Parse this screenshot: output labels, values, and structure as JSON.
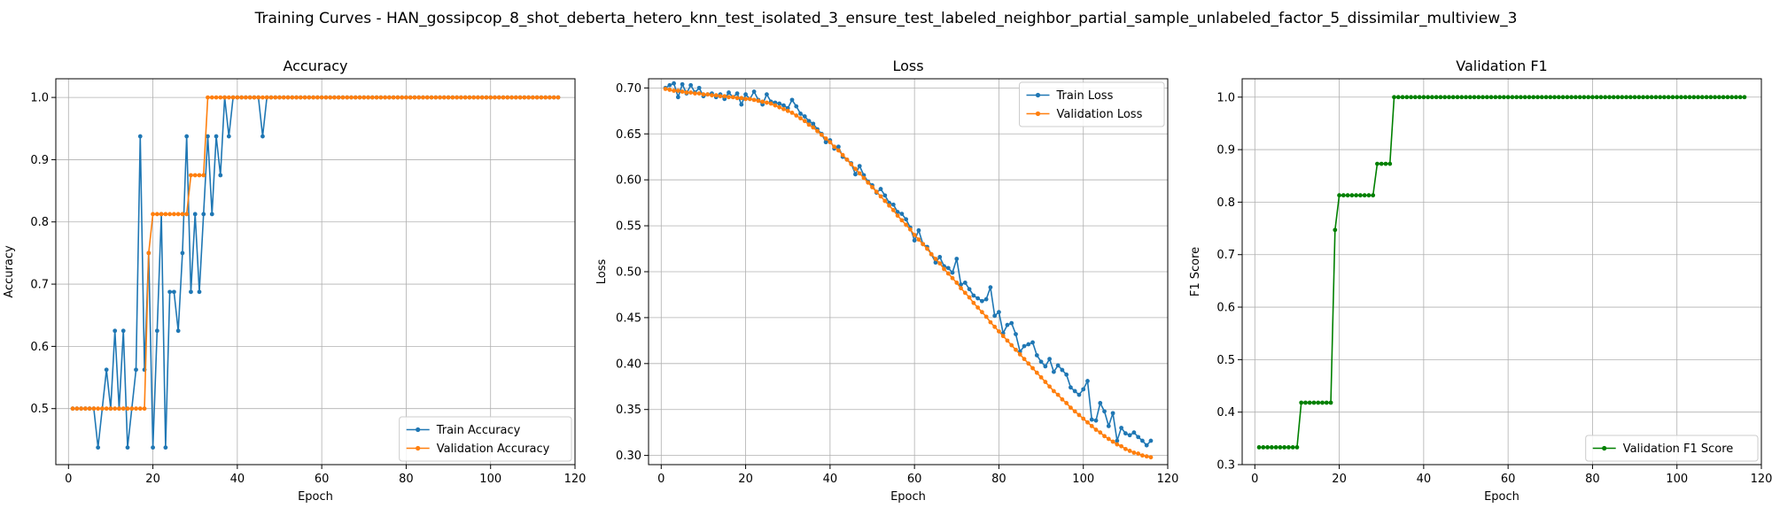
{
  "suptitle": "Training Curves - HAN_gossipcop_8_shot_deberta_hetero_knn_test_isolated_3_ensure_test_labeled_neighbor_partial_sample_unlabeled_factor_5_dissimilar_multiview_3",
  "colors": {
    "blue": "#1f77b4",
    "orange": "#ff7f0e",
    "green": "#008000",
    "grid": "#b0b0b0"
  },
  "chart_data": [
    {
      "type": "line",
      "title": "Accuracy",
      "xlabel": "Epoch",
      "ylabel": "Accuracy",
      "xlim": [
        -3,
        120
      ],
      "ylim": [
        0.41,
        1.03
      ],
      "xticks": [
        0,
        20,
        40,
        60,
        80,
        100,
        120
      ],
      "yticks": [
        0.5,
        0.6,
        0.7,
        0.8,
        0.9,
        1.0
      ],
      "ytick_labels": [
        "0.5",
        "0.6",
        "0.7",
        "0.8",
        "0.9",
        "1.0"
      ],
      "grid": true,
      "legend": "lower right",
      "x_start": 1,
      "series": [
        {
          "name": "Train Accuracy",
          "color": "#1f77b4",
          "values": [
            0.5,
            0.5,
            0.5,
            0.5,
            0.5,
            0.5,
            0.4375,
            0.5,
            0.5625,
            0.5,
            0.625,
            0.5,
            0.625,
            0.4375,
            0.5,
            0.5625,
            0.9375,
            0.5625,
            0.75,
            0.4375,
            0.625,
            0.8125,
            0.4375,
            0.6875,
            0.6875,
            0.625,
            0.75,
            0.9375,
            0.6875,
            0.8125,
            0.6875,
            0.8125,
            0.9375,
            0.8125,
            0.9375,
            0.875,
            1.0,
            0.9375,
            1.0,
            1.0,
            1.0,
            1.0,
            1.0,
            1.0,
            1.0,
            0.9375,
            1.0,
            1.0,
            1.0,
            1.0,
            1.0,
            1.0,
            1.0,
            1.0,
            1.0,
            1.0,
            1.0,
            1.0,
            1.0,
            1.0,
            1.0,
            1.0,
            1.0,
            1.0,
            1.0,
            1.0,
            1.0,
            1.0,
            1.0,
            1.0,
            1.0,
            1.0,
            1.0,
            1.0,
            1.0,
            1.0,
            1.0,
            1.0,
            1.0,
            1.0,
            1.0,
            1.0,
            1.0,
            1.0,
            1.0,
            1.0,
            1.0,
            1.0,
            1.0,
            1.0,
            1.0,
            1.0,
            1.0,
            1.0,
            1.0,
            1.0,
            1.0,
            1.0,
            1.0,
            1.0,
            1.0,
            1.0,
            1.0,
            1.0,
            1.0,
            1.0,
            1.0,
            1.0,
            1.0,
            1.0,
            1.0,
            1.0,
            1.0,
            1.0,
            1.0,
            1.0
          ]
        },
        {
          "name": "Validation Accuracy",
          "color": "#ff7f0e",
          "values": [
            0.5,
            0.5,
            0.5,
            0.5,
            0.5,
            0.5,
            0.5,
            0.5,
            0.5,
            0.5,
            0.5,
            0.5,
            0.5,
            0.5,
            0.5,
            0.5,
            0.5,
            0.5,
            0.75,
            0.8125,
            0.8125,
            0.8125,
            0.8125,
            0.8125,
            0.8125,
            0.8125,
            0.8125,
            0.8125,
            0.875,
            0.875,
            0.875,
            0.875,
            1.0,
            1.0,
            1.0,
            1.0,
            1.0,
            1.0,
            1.0,
            1.0,
            1.0,
            1.0,
            1.0,
            1.0,
            1.0,
            1.0,
            1.0,
            1.0,
            1.0,
            1.0,
            1.0,
            1.0,
            1.0,
            1.0,
            1.0,
            1.0,
            1.0,
            1.0,
            1.0,
            1.0,
            1.0,
            1.0,
            1.0,
            1.0,
            1.0,
            1.0,
            1.0,
            1.0,
            1.0,
            1.0,
            1.0,
            1.0,
            1.0,
            1.0,
            1.0,
            1.0,
            1.0,
            1.0,
            1.0,
            1.0,
            1.0,
            1.0,
            1.0,
            1.0,
            1.0,
            1.0,
            1.0,
            1.0,
            1.0,
            1.0,
            1.0,
            1.0,
            1.0,
            1.0,
            1.0,
            1.0,
            1.0,
            1.0,
            1.0,
            1.0,
            1.0,
            1.0,
            1.0,
            1.0,
            1.0,
            1.0,
            1.0,
            1.0,
            1.0,
            1.0,
            1.0,
            1.0,
            1.0,
            1.0,
            1.0,
            1.0
          ]
        }
      ]
    },
    {
      "type": "line",
      "title": "Loss",
      "xlabel": "Epoch",
      "ylabel": "Loss",
      "xlim": [
        -3,
        120
      ],
      "ylim": [
        0.29,
        0.71
      ],
      "xticks": [
        0,
        20,
        40,
        60,
        80,
        100,
        120
      ],
      "yticks": [
        0.3,
        0.35,
        0.4,
        0.45,
        0.5,
        0.55,
        0.6,
        0.65,
        0.7
      ],
      "ytick_labels": [
        "0.30",
        "0.35",
        "0.40",
        "0.45",
        "0.50",
        "0.55",
        "0.60",
        "0.65",
        "0.70"
      ],
      "grid": true,
      "legend": "upper right",
      "x_start": 1,
      "series": [
        {
          "name": "Train Loss",
          "color": "#1f77b4",
          "values": [
            0.7,
            0.703,
            0.705,
            0.69,
            0.704,
            0.694,
            0.703,
            0.695,
            0.7,
            0.691,
            0.693,
            0.694,
            0.69,
            0.693,
            0.688,
            0.695,
            0.69,
            0.694,
            0.682,
            0.693,
            0.688,
            0.696,
            0.687,
            0.682,
            0.693,
            0.685,
            0.684,
            0.683,
            0.681,
            0.678,
            0.687,
            0.68,
            0.672,
            0.669,
            0.664,
            0.661,
            0.655,
            0.65,
            0.641,
            0.643,
            0.634,
            0.636,
            0.625,
            0.622,
            0.618,
            0.606,
            0.615,
            0.605,
            0.598,
            0.594,
            0.586,
            0.59,
            0.583,
            0.575,
            0.573,
            0.565,
            0.563,
            0.557,
            0.548,
            0.534,
            0.545,
            0.53,
            0.527,
            0.519,
            0.51,
            0.516,
            0.506,
            0.504,
            0.499,
            0.514,
            0.486,
            0.488,
            0.481,
            0.474,
            0.471,
            0.468,
            0.47,
            0.483,
            0.452,
            0.456,
            0.433,
            0.442,
            0.444,
            0.432,
            0.413,
            0.419,
            0.421,
            0.423,
            0.409,
            0.402,
            0.397,
            0.405,
            0.391,
            0.398,
            0.393,
            0.388,
            0.374,
            0.37,
            0.366,
            0.372,
            0.381,
            0.339,
            0.338,
            0.357,
            0.348,
            0.332,
            0.346,
            0.316,
            0.33,
            0.324,
            0.322,
            0.325,
            0.32,
            0.316,
            0.311,
            0.316
          ]
        },
        {
          "name": "Validation Loss",
          "color": "#ff7f0e",
          "values": [
            0.699,
            0.698,
            0.697,
            0.697,
            0.696,
            0.695,
            0.695,
            0.694,
            0.694,
            0.693,
            0.693,
            0.692,
            0.692,
            0.691,
            0.691,
            0.69,
            0.69,
            0.689,
            0.689,
            0.688,
            0.688,
            0.687,
            0.686,
            0.685,
            0.684,
            0.683,
            0.681,
            0.679,
            0.677,
            0.675,
            0.673,
            0.67,
            0.667,
            0.664,
            0.66,
            0.657,
            0.653,
            0.649,
            0.645,
            0.641,
            0.636,
            0.632,
            0.627,
            0.622,
            0.617,
            0.612,
            0.607,
            0.602,
            0.597,
            0.592,
            0.587,
            0.582,
            0.577,
            0.572,
            0.567,
            0.561,
            0.556,
            0.551,
            0.546,
            0.54,
            0.535,
            0.53,
            0.525,
            0.519,
            0.514,
            0.509,
            0.503,
            0.498,
            0.493,
            0.488,
            0.482,
            0.477,
            0.472,
            0.466,
            0.461,
            0.456,
            0.451,
            0.445,
            0.44,
            0.435,
            0.43,
            0.425,
            0.42,
            0.415,
            0.41,
            0.405,
            0.4,
            0.395,
            0.39,
            0.385,
            0.38,
            0.375,
            0.37,
            0.366,
            0.361,
            0.357,
            0.352,
            0.348,
            0.344,
            0.34,
            0.336,
            0.332,
            0.328,
            0.325,
            0.321,
            0.318,
            0.315,
            0.312,
            0.31,
            0.307,
            0.305,
            0.303,
            0.302,
            0.3,
            0.299,
            0.298
          ]
        }
      ]
    },
    {
      "type": "line",
      "title": "Validation F1",
      "xlabel": "Epoch",
      "ylabel": "F1 Score",
      "xlim": [
        -3,
        120
      ],
      "ylim": [
        0.3,
        1.035
      ],
      "xticks": [
        0,
        20,
        40,
        60,
        80,
        100,
        120
      ],
      "yticks": [
        0.3,
        0.4,
        0.5,
        0.6,
        0.7,
        0.8,
        0.9,
        1.0
      ],
      "ytick_labels": [
        "0.3",
        "0.4",
        "0.5",
        "0.6",
        "0.7",
        "0.8",
        "0.9",
        "1.0"
      ],
      "grid": true,
      "legend": "lower right",
      "x_start": 1,
      "series": [
        {
          "name": "Validation F1 Score",
          "color": "#008000",
          "values": [
            0.333,
            0.333,
            0.333,
            0.333,
            0.333,
            0.333,
            0.333,
            0.333,
            0.333,
            0.333,
            0.418,
            0.418,
            0.418,
            0.418,
            0.418,
            0.418,
            0.418,
            0.418,
            0.747,
            0.813,
            0.813,
            0.813,
            0.813,
            0.813,
            0.813,
            0.813,
            0.813,
            0.813,
            0.873,
            0.873,
            0.873,
            0.873,
            1.0,
            1.0,
            1.0,
            1.0,
            1.0,
            1.0,
            1.0,
            1.0,
            1.0,
            1.0,
            1.0,
            1.0,
            1.0,
            1.0,
            1.0,
            1.0,
            1.0,
            1.0,
            1.0,
            1.0,
            1.0,
            1.0,
            1.0,
            1.0,
            1.0,
            1.0,
            1.0,
            1.0,
            1.0,
            1.0,
            1.0,
            1.0,
            1.0,
            1.0,
            1.0,
            1.0,
            1.0,
            1.0,
            1.0,
            1.0,
            1.0,
            1.0,
            1.0,
            1.0,
            1.0,
            1.0,
            1.0,
            1.0,
            1.0,
            1.0,
            1.0,
            1.0,
            1.0,
            1.0,
            1.0,
            1.0,
            1.0,
            1.0,
            1.0,
            1.0,
            1.0,
            1.0,
            1.0,
            1.0,
            1.0,
            1.0,
            1.0,
            1.0,
            1.0,
            1.0,
            1.0,
            1.0,
            1.0,
            1.0,
            1.0,
            1.0,
            1.0,
            1.0,
            1.0,
            1.0,
            1.0,
            1.0,
            1.0,
            1.0
          ]
        }
      ]
    }
  ]
}
